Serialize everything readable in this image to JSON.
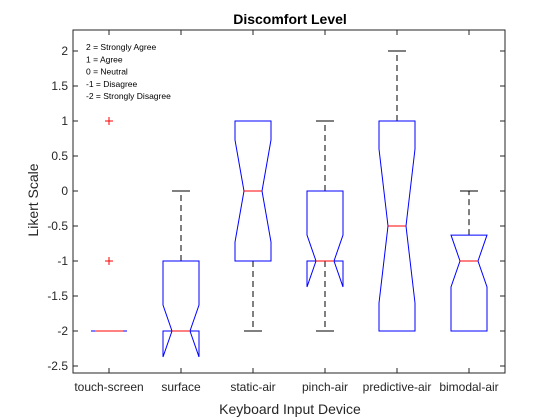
{
  "chart_data": {
    "type": "boxplot",
    "title": "Discomfort Level",
    "xlabel": "Keyboard Input Device",
    "ylabel": "Likert Scale",
    "ylim": [
      -2.6,
      2.3
    ],
    "yticks": [
      2,
      1.5,
      1,
      0.5,
      0,
      -0.5,
      -1,
      -1.5,
      -2,
      -2.5
    ],
    "ytick_labels": [
      "2",
      "1.5",
      "1",
      "0.5",
      "0",
      "-0.5",
      "-1",
      "-1.5",
      "-2",
      "-2.5"
    ],
    "notched": true,
    "legend_note": [
      "2 = Strongly Agree",
      "1 = Agree",
      "0 = Neutral",
      "-1 = Disagree",
      "-2 = Strongly Disagree"
    ],
    "categories": [
      "touch-screen",
      "surface",
      "static-air",
      "pinch-air",
      "predictive-air",
      "bimodal-air"
    ],
    "boxes": [
      {
        "q1": -2,
        "median": -2,
        "q3": -2,
        "whisker_low": -2,
        "whisker_high": -2,
        "notch_low": -2,
        "notch_high": -2,
        "outliers": [
          1,
          -1
        ]
      },
      {
        "q1": -2,
        "median": -2,
        "q3": -1,
        "whisker_low": -2,
        "whisker_high": 0,
        "notch_low": -2.37,
        "notch_high": -1.63,
        "outliers": []
      },
      {
        "q1": -1,
        "median": 0,
        "q3": 1,
        "whisker_low": -2,
        "whisker_high": 1,
        "notch_low": -0.73,
        "notch_high": 0.73,
        "outliers": []
      },
      {
        "q1": -1,
        "median": -1,
        "q3": 0,
        "whisker_low": -2,
        "whisker_high": 1,
        "notch_low": -1.37,
        "notch_high": -0.63,
        "outliers": []
      },
      {
        "q1": -2,
        "median": -0.5,
        "q3": 1,
        "whisker_low": -2,
        "whisker_high": 2,
        "notch_low": -1.6,
        "notch_high": 0.6,
        "outliers": []
      },
      {
        "q1": -2,
        "median": -1,
        "q3": -0.63,
        "whisker_low": -2,
        "whisker_high": 0,
        "notch_low": -1.37,
        "notch_high": -0.63,
        "outliers": []
      }
    ],
    "colors": {
      "box": "#0000ff",
      "median": "#ff0000",
      "whisker": "#000000",
      "outlier": "#ff0000"
    }
  }
}
